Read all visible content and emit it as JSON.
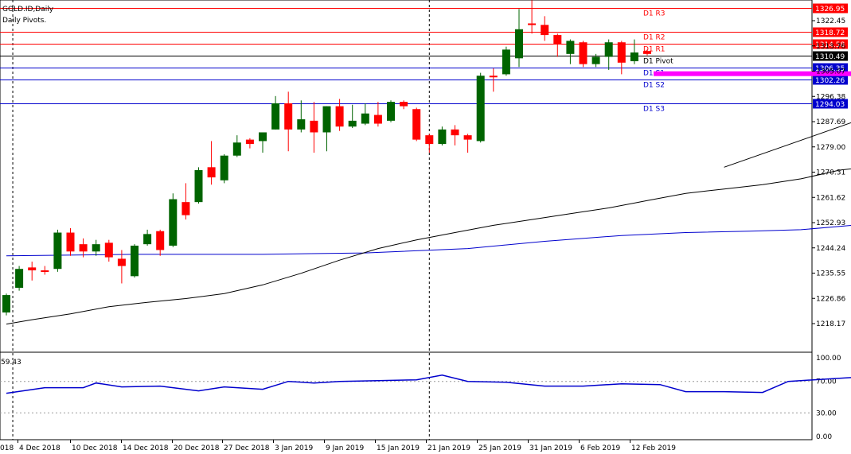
{
  "window": {
    "title": "GOLD.ID,Daily",
    "subtitle": "Daily Pivots."
  },
  "colors": {
    "bull": "#006400",
    "bear": "#ff0000",
    "ma_short": "#000000",
    "ma_long": "#0000cd",
    "indicator": "#0000cd",
    "pivot_red": "#ff0000",
    "pivot_blue": "#0000cd",
    "support_zone": "#ff00ff"
  },
  "chart_data": {
    "type": "candlestick",
    "ylim": [
      1211,
      1330
    ],
    "y_ticks": [
      "1322.45",
      "1313.76",
      "1305.07",
      "1296.38",
      "1287.69",
      "1279.00",
      "1270.31",
      "1261.62",
      "1252.93",
      "1244.24",
      "1235.55",
      "1226.86",
      "1218.17"
    ],
    "x_labels": [
      "4 Dec 2018",
      "10 Dec 2018",
      "14 Dec 2018",
      "20 Dec 2018",
      "27 Dec 2018",
      "3 Jan 2019",
      "9 Jan 2019",
      "15 Jan 2019",
      "21 Jan 2019",
      "25 Jan 2019",
      "31 Jan 2019",
      "6 Feb 2019",
      "12 Feb 2019"
    ],
    "x_label_left_partial": "018",
    "candles": [
      {
        "o": 1222.0,
        "h": 1228.5,
        "l": 1221.0,
        "c": 1228.0
      },
      {
        "o": 1230.5,
        "h": 1238.0,
        "l": 1229.5,
        "c": 1237.0
      },
      {
        "o": 1237.5,
        "h": 1239.5,
        "l": 1233.0,
        "c": 1236.5
      },
      {
        "o": 1236.5,
        "h": 1238.0,
        "l": 1235.0,
        "c": 1236.0
      },
      {
        "o": 1237.0,
        "h": 1250.5,
        "l": 1236.0,
        "c": 1249.5
      },
      {
        "o": 1249.5,
        "h": 1251.0,
        "l": 1241.5,
        "c": 1243.0
      },
      {
        "o": 1245.5,
        "h": 1247.5,
        "l": 1241.0,
        "c": 1243.0
      },
      {
        "o": 1243.0,
        "h": 1247.0,
        "l": 1241.5,
        "c": 1245.5
      },
      {
        "o": 1246.0,
        "h": 1247.0,
        "l": 1239.5,
        "c": 1241.0
      },
      {
        "o": 1240.5,
        "h": 1243.5,
        "l": 1232.0,
        "c": 1238.0
      },
      {
        "o": 1234.5,
        "h": 1245.5,
        "l": 1234.0,
        "c": 1245.0
      },
      {
        "o": 1245.5,
        "h": 1250.5,
        "l": 1245.0,
        "c": 1249.0
      },
      {
        "o": 1250.0,
        "h": 1250.5,
        "l": 1241.5,
        "c": 1243.5
      },
      {
        "o": 1245.0,
        "h": 1263.0,
        "l": 1244.5,
        "c": 1261.0
      },
      {
        "o": 1260.0,
        "h": 1266.5,
        "l": 1254.0,
        "c": 1255.5
      },
      {
        "o": 1260.0,
        "h": 1272.0,
        "l": 1259.5,
        "c": 1271.0
      },
      {
        "o": 1272.0,
        "h": 1281.0,
        "l": 1266.0,
        "c": 1268.5
      },
      {
        "o": 1267.5,
        "h": 1276.5,
        "l": 1266.5,
        "c": 1276.0
      },
      {
        "o": 1276.0,
        "h": 1283.0,
        "l": 1275.5,
        "c": 1280.5
      },
      {
        "o": 1281.5,
        "h": 1282.0,
        "l": 1278.5,
        "c": 1280.0
      },
      {
        "o": 1281.0,
        "h": 1284.0,
        "l": 1277.0,
        "c": 1284.0
      },
      {
        "o": 1285.0,
        "h": 1296.5,
        "l": 1285.0,
        "c": 1294.0
      },
      {
        "o": 1294.0,
        "h": 1298.0,
        "l": 1277.5,
        "c": 1285.0
      },
      {
        "o": 1285.0,
        "h": 1295.0,
        "l": 1284.0,
        "c": 1288.5
      },
      {
        "o": 1288.0,
        "h": 1294.5,
        "l": 1277.0,
        "c": 1284.0
      },
      {
        "o": 1284.0,
        "h": 1293.0,
        "l": 1277.5,
        "c": 1293.0
      },
      {
        "o": 1293.0,
        "h": 1295.5,
        "l": 1284.5,
        "c": 1286.0
      },
      {
        "o": 1286.0,
        "h": 1293.5,
        "l": 1285.5,
        "c": 1288.0
      },
      {
        "o": 1287.0,
        "h": 1294.0,
        "l": 1286.5,
        "c": 1290.5
      },
      {
        "o": 1290.0,
        "h": 1294.5,
        "l": 1286.0,
        "c": 1287.0
      },
      {
        "o": 1288.0,
        "h": 1295.0,
        "l": 1287.5,
        "c": 1294.5
      },
      {
        "o": 1294.5,
        "h": 1295.0,
        "l": 1292.0,
        "c": 1293.0
      },
      {
        "o": 1292.0,
        "h": 1292.5,
        "l": 1281.0,
        "c": 1281.5
      },
      {
        "o": 1283.0,
        "h": 1283.5,
        "l": 1277.0,
        "c": 1280.0
      },
      {
        "o": 1280.0,
        "h": 1286.0,
        "l": 1279.5,
        "c": 1285.0
      },
      {
        "o": 1285.0,
        "h": 1286.5,
        "l": 1279.5,
        "c": 1283.0
      },
      {
        "o": 1283.0,
        "h": 1283.5,
        "l": 1277.0,
        "c": 1281.5
      },
      {
        "o": 1281.0,
        "h": 1304.5,
        "l": 1280.5,
        "c": 1303.5
      },
      {
        "o": 1303.5,
        "h": 1306.0,
        "l": 1298.0,
        "c": 1303.0
      },
      {
        "o": 1304.0,
        "h": 1313.5,
        "l": 1303.5,
        "c": 1312.5
      },
      {
        "o": 1309.5,
        "h": 1326.5,
        "l": 1306.5,
        "c": 1319.5
      },
      {
        "o": 1321.5,
        "h": 1329.5,
        "l": 1318.0,
        "c": 1321.0
      },
      {
        "o": 1321.0,
        "h": 1324.0,
        "l": 1315.5,
        "c": 1317.5
      },
      {
        "o": 1317.5,
        "h": 1318.0,
        "l": 1310.0,
        "c": 1314.5
      },
      {
        "o": 1311.0,
        "h": 1316.0,
        "l": 1307.5,
        "c": 1315.5
      },
      {
        "o": 1315.0,
        "h": 1315.5,
        "l": 1306.5,
        "c": 1307.5
      },
      {
        "o": 1307.5,
        "h": 1311.0,
        "l": 1306.5,
        "c": 1310.0
      },
      {
        "o": 1310.0,
        "h": 1316.0,
        "l": 1305.5,
        "c": 1315.0
      },
      {
        "o": 1315.0,
        "h": 1315.5,
        "l": 1304.0,
        "c": 1308.0
      },
      {
        "o": 1308.5,
        "h": 1316.0,
        "l": 1307.5,
        "c": 1311.5
      },
      {
        "o": 1312.0,
        "h": 1312.5,
        "l": 1310.5,
        "c": 1311.0
      }
    ],
    "ma_short": [
      [
        0,
        1218.0
      ],
      [
        2,
        1219.5
      ],
      [
        5,
        1221.5
      ],
      [
        8,
        1224.0
      ],
      [
        11,
        1225.5
      ],
      [
        14,
        1226.8
      ],
      [
        17,
        1228.5
      ],
      [
        20,
        1231.5
      ],
      [
        23,
        1235.5
      ],
      [
        26,
        1240.0
      ],
      [
        29,
        1244.0
      ],
      [
        32,
        1247.0
      ],
      [
        35,
        1249.5
      ],
      [
        38,
        1252.0
      ],
      [
        41,
        1254.0
      ],
      [
        44,
        1256.0
      ],
      [
        47,
        1258.0
      ],
      [
        50,
        1260.5
      ],
      [
        53,
        1263.0
      ],
      [
        56,
        1264.5
      ],
      [
        59,
        1266.0
      ],
      [
        62,
        1268.0
      ],
      [
        65,
        1271.0
      ],
      [
        68,
        1272.5
      ],
      [
        71,
        1274.5
      ],
      [
        74,
        1276.0
      ],
      [
        77,
        1278.0
      ],
      [
        80,
        1279.8
      ],
      [
        81.5,
        1280.8
      ]
    ],
    "ma_long": [
      [
        0,
        1241.5
      ],
      [
        10,
        1242.0
      ],
      [
        20,
        1242.0
      ],
      [
        28,
        1242.5
      ],
      [
        36,
        1244.0
      ],
      [
        42,
        1246.5
      ],
      [
        48,
        1248.5
      ],
      [
        53,
        1249.5
      ],
      [
        58,
        1250.0
      ],
      [
        62,
        1250.5
      ],
      [
        66,
        1252.0
      ],
      [
        70,
        1253.5
      ],
      [
        74,
        1255.0
      ],
      [
        78,
        1256.5
      ],
      [
        81.5,
        1257.5
      ]
    ],
    "trendline": [
      [
        56,
        1272.0
      ],
      [
        82.5,
        1313.0
      ]
    ],
    "support_zone": {
      "x0": 50.5,
      "x1": 92,
      "y": 1304.2
    },
    "vlines_dashed_index": [
      0.5,
      33,
      68.5
    ],
    "pivots": [
      {
        "name": "D1  R3",
        "value": 1326.95,
        "price": "1326.95",
        "tone": "red"
      },
      {
        "name": "D1  R2",
        "value": 1318.72,
        "price": "1318.72",
        "tone": "red"
      },
      {
        "name": "D1  R1",
        "value": 1314.58,
        "price": "1314.58",
        "tone": "red"
      },
      {
        "name": "D1  Pivot",
        "value": 1310.49,
        "price": "1310.49",
        "tone": "black"
      },
      {
        "name": "D1  S1",
        "value": 1306.35,
        "price": "1306.35",
        "tone": "blue"
      },
      {
        "name": "D1  S2",
        "value": 1302.26,
        "price": "1302.26",
        "tone": "blue"
      },
      {
        "name": "D1  S3",
        "value": 1294.03,
        "price": "1294.03",
        "tone": "blue"
      }
    ],
    "indicator": {
      "label": "59.43",
      "levels": [
        "100.00",
        "70.00",
        "30.00",
        "0.00"
      ],
      "values": [
        [
          0,
          55
        ],
        [
          3,
          62
        ],
        [
          6,
          62
        ],
        [
          7,
          68
        ],
        [
          9,
          63
        ],
        [
          12,
          64
        ],
        [
          15,
          58
        ],
        [
          17,
          63
        ],
        [
          20,
          60
        ],
        [
          22,
          70
        ],
        [
          24,
          68
        ],
        [
          26,
          70
        ],
        [
          29,
          71
        ],
        [
          32,
          72
        ],
        [
          34,
          78
        ],
        [
          36,
          70
        ],
        [
          39,
          69
        ],
        [
          42,
          64
        ],
        [
          45,
          64
        ],
        [
          48,
          67
        ],
        [
          51,
          66
        ],
        [
          53,
          57
        ],
        [
          56,
          57
        ],
        [
          59,
          56
        ],
        [
          61,
          70
        ],
        [
          64,
          73
        ],
        [
          67,
          76
        ],
        [
          69,
          73
        ],
        [
          71,
          65
        ],
        [
          72,
          64
        ],
        [
          74,
          58
        ],
        [
          76,
          60
        ],
        [
          78,
          58
        ],
        [
          80,
          60
        ],
        [
          82,
          58
        ]
      ]
    }
  }
}
